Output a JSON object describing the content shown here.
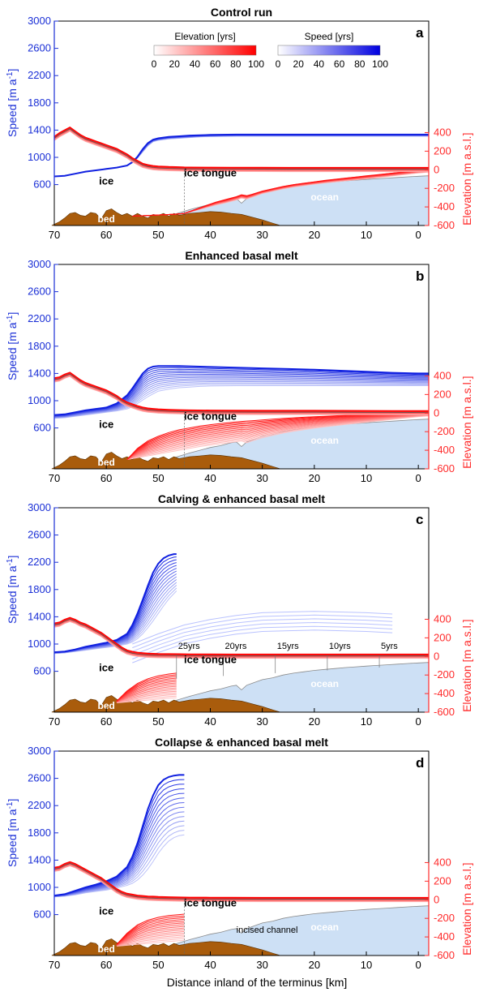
{
  "chart_data": {
    "type": "line",
    "xlabel": "Distance inland of the terminus [km]",
    "ylabel_left": "Speed [m a",
    "ylabel_left_sup": "-1",
    "ylabel_left_end": "]",
    "ylabel_right": "Elevation [m a.s.l.]",
    "xlim": [
      70,
      -2
    ],
    "x_ticks": [
      70,
      60,
      50,
      40,
      30,
      20,
      10,
      0
    ],
    "y_left_lim": [
      0,
      3000
    ],
    "y_left_ticks": [
      600,
      1000,
      1400,
      1800,
      2200,
      2600,
      3000
    ],
    "y_right_lim": [
      -600,
      1600
    ],
    "y_right_ticks": [
      -600,
      -400,
      -200,
      0,
      200,
      400
    ],
    "legend": {
      "elevation": {
        "label": "Elevation [yrs]",
        "ticks": [
          "0",
          "20",
          "40",
          "60",
          "80",
          "100"
        ],
        "color_from": "#ffffff",
        "color_to": "#ff0000"
      },
      "speed": {
        "label": "Speed [yrs]",
        "ticks": [
          "0",
          "20",
          "40",
          "60",
          "80",
          "100"
        ],
        "color_from": "#ffffff",
        "color_to": "#0000e0"
      },
      "placement": "top-center"
    },
    "region_labels": {
      "ice": "ice",
      "bed": "bed",
      "ocean": "ocean",
      "ice_tongue": "ice tongue"
    },
    "colors": {
      "speed": "#1f2ee0",
      "elevation": "#ff2020",
      "bed": "#a95c0c",
      "ocean": "#cde0f5",
      "axis_left": "#1a2fd6",
      "axis_right": "#ff2a2a"
    },
    "bed_profile": {
      "x": [
        70.5,
        69,
        68,
        67,
        66,
        65,
        64,
        63,
        62,
        61,
        60,
        59,
        58,
        57,
        56,
        55,
        54,
        53,
        52,
        51,
        50,
        49,
        48,
        47,
        46,
        45,
        44,
        42,
        40,
        38,
        36,
        34,
        32,
        30,
        28,
        26.5
      ],
      "y": [
        -600,
        -560,
        -520,
        -470,
        -460,
        -490,
        -500,
        -460,
        -470,
        -530,
        -440,
        -420,
        -460,
        -490,
        -470,
        -500,
        -470,
        -500,
        -520,
        -480,
        -490,
        -470,
        -500,
        -470,
        -490,
        -480,
        -470,
        -460,
        -450,
        -455,
        -470,
        -480,
        -510,
        -540,
        -575,
        -600
      ]
    },
    "ocean_profile": {
      "x": [
        47,
        44,
        42,
        40,
        38,
        36,
        35,
        34,
        33,
        32,
        30,
        28,
        26,
        24,
        22,
        20,
        18,
        16,
        14,
        12,
        10,
        8,
        6,
        4,
        2,
        0,
        -2
      ],
      "y": [
        -480,
        -430,
        -400,
        -370,
        -350,
        -320,
        -310,
        -360,
        -310,
        -290,
        -250,
        -230,
        -200,
        -180,
        -165,
        -150,
        -140,
        -130,
        -120,
        -112,
        -104,
        -97,
        -90,
        -83,
        -76,
        -70,
        -65
      ]
    },
    "panels": [
      {
        "id": "a",
        "title": "Control run",
        "annotations": [],
        "speed": {
          "x": [
            70,
            68,
            66,
            64,
            62,
            60,
            58,
            56,
            55,
            54,
            53,
            52,
            51,
            50,
            48,
            46,
            44,
            42,
            40,
            35,
            30,
            25,
            20,
            15,
            10,
            5,
            0,
            -2
          ],
          "start": [
            720,
            730,
            760,
            790,
            810,
            830,
            850,
            880,
            920,
            990,
            1080,
            1170,
            1230,
            1250,
            1270,
            1280,
            1290,
            1300,
            1305,
            1310,
            1310,
            1310,
            1310,
            1310,
            1310,
            1310,
            1310,
            1310
          ],
          "end": [
            720,
            730,
            760,
            790,
            810,
            830,
            850,
            880,
            930,
            1010,
            1120,
            1210,
            1260,
            1280,
            1300,
            1310,
            1320,
            1325,
            1330,
            1335,
            1335,
            1335,
            1335,
            1335,
            1335,
            1335,
            1335,
            1335
          ]
        },
        "elevation": {
          "x": [
            70,
            69,
            68,
            67,
            66,
            65,
            64,
            63,
            62,
            61,
            60,
            59,
            58,
            57,
            56,
            55,
            54,
            53,
            52,
            51,
            50,
            48,
            46,
            45,
            44,
            40,
            36,
            30,
            25,
            20,
            15,
            10,
            5,
            0,
            -2
          ],
          "surface": [
            340,
            380,
            410,
            440,
            400,
            360,
            330,
            310,
            290,
            270,
            250,
            230,
            210,
            180,
            150,
            110,
            80,
            50,
            35,
            25,
            20,
            15,
            12,
            10,
            9,
            8,
            7,
            6,
            5,
            5,
            5,
            5,
            5,
            5,
            5
          ],
          "base_x": [
            55,
            53,
            51,
            49,
            47,
            45,
            43,
            41,
            39,
            37,
            35,
            34,
            33,
            32,
            30,
            28,
            26,
            24,
            22,
            20,
            18,
            16,
            14,
            12,
            10,
            8,
            6,
            4,
            2,
            0,
            -2
          ],
          "base_start": [
            -500,
            -495,
            -490,
            -485,
            -480,
            -470,
            -440,
            -410,
            -380,
            -355,
            -325,
            -305,
            -315,
            -295,
            -255,
            -230,
            -205,
            -185,
            -170,
            -155,
            -142,
            -130,
            -119,
            -108,
            -97,
            -85,
            -73,
            -60,
            -47,
            -34,
            -25
          ],
          "base_end": [
            -500,
            -495,
            -490,
            -485,
            -480,
            -470,
            -430,
            -390,
            -350,
            -320,
            -290,
            -270,
            -280,
            -265,
            -230,
            -205,
            -180,
            -160,
            -145,
            -130,
            -115,
            -102,
            -90,
            -78,
            -66,
            -54,
            -42,
            -30,
            -20,
            -10,
            -5
          ]
        }
      },
      {
        "id": "b",
        "title": "Enhanced basal melt",
        "annotations": [],
        "speed": {
          "x": [
            70,
            68,
            66,
            64,
            62,
            60,
            58,
            56,
            55,
            54,
            53,
            52,
            51,
            50,
            48,
            46,
            44,
            42,
            40,
            35,
            30,
            25,
            20,
            15,
            10,
            5,
            0,
            -2
          ],
          "start": [
            740,
            750,
            770,
            790,
            810,
            830,
            850,
            880,
            910,
            960,
            1010,
            1060,
            1100,
            1140,
            1170,
            1190,
            1200,
            1210,
            1215,
            1220,
            1220,
            1220,
            1220,
            1220,
            1220,
            1220,
            1220,
            1220
          ],
          "end": [
            790,
            800,
            830,
            860,
            880,
            900,
            960,
            1080,
            1180,
            1290,
            1400,
            1470,
            1500,
            1510,
            1510,
            1510,
            1505,
            1500,
            1495,
            1485,
            1475,
            1465,
            1455,
            1440,
            1425,
            1410,
            1400,
            1400
          ]
        },
        "elevation": {
          "x": [
            70,
            69,
            68,
            67,
            66,
            65,
            64,
            63,
            62,
            61,
            60,
            59,
            58,
            57,
            56,
            55,
            54,
            53,
            52,
            51,
            50,
            48,
            46,
            45,
            44,
            40,
            36,
            30,
            25,
            20,
            15,
            10,
            5,
            0,
            -2
          ],
          "surface": [
            360,
            370,
            400,
            420,
            380,
            340,
            310,
            290,
            270,
            250,
            230,
            200,
            170,
            130,
            100,
            80,
            60,
            45,
            35,
            30,
            25,
            20,
            17,
            15,
            14,
            12,
            11,
            10,
            10,
            10,
            9,
            8,
            7,
            6,
            6
          ],
          "base_x": [
            56,
            54,
            52,
            50,
            48,
            46,
            44,
            42,
            40,
            38,
            36,
            34,
            33,
            32,
            30,
            28,
            26,
            24,
            22,
            20,
            18,
            16,
            14,
            12,
            10,
            8,
            6,
            4,
            2,
            0,
            -2
          ],
          "base_start": [
            -500,
            -480,
            -460,
            -440,
            -420,
            -400,
            -380,
            -360,
            -345,
            -330,
            -315,
            -300,
            -320,
            -300,
            -265,
            -240,
            -215,
            -195,
            -178,
            -162,
            -148,
            -135,
            -122,
            -110,
            -98,
            -86,
            -74,
            -62,
            -50,
            -38,
            -30
          ],
          "base_end": [
            -500,
            -380,
            -300,
            -250,
            -210,
            -180,
            -160,
            -140,
            -125,
            -112,
            -100,
            -90,
            -86,
            -82,
            -74,
            -66,
            -58,
            -51,
            -45,
            -39,
            -34,
            -29,
            -24,
            -20,
            -16,
            -12,
            -9,
            -6,
            -4,
            -2,
            -1
          ]
        }
      },
      {
        "id": "c",
        "title": "Calving & enhanced basal melt",
        "annotations": [
          {
            "text": "25yrs",
            "x": 46.5
          },
          {
            "text": "20yrs",
            "x": 37.5
          },
          {
            "text": "15yrs",
            "x": 27.5
          },
          {
            "text": "10yrs",
            "x": 17.5
          },
          {
            "text": "5yrs",
            "x": 7.5
          }
        ],
        "speed": {
          "x": [
            70,
            68,
            66,
            64,
            62,
            60,
            58,
            56,
            55,
            54,
            53,
            52,
            51,
            50,
            49,
            48,
            47,
            46.5
          ],
          "start": [
            860,
            870,
            890,
            910,
            930,
            950,
            970,
            1000,
            1030,
            1080,
            1150,
            1240,
            1340,
            1450,
            1560,
            1660,
            1740,
            1780
          ],
          "end": [
            880,
            890,
            920,
            960,
            990,
            1020,
            1060,
            1150,
            1280,
            1450,
            1650,
            1860,
            2050,
            2180,
            2260,
            2300,
            2320,
            2320
          ]
        },
        "speed_tongue_x": [
          55,
          50,
          45,
          40,
          35,
          30,
          25,
          20,
          15,
          10,
          5
        ],
        "speed_tongue": [
          1000,
          1150,
          1280,
          1360,
          1420,
          1460,
          1470,
          1480,
          1470,
          1460,
          1440
        ],
        "elevation": {
          "x": [
            70,
            69,
            68,
            67,
            66,
            65,
            64,
            63,
            62,
            61,
            60,
            59,
            58,
            57,
            56,
            55,
            54,
            53,
            52,
            51,
            50,
            48,
            46,
            45,
            44,
            40,
            36,
            30,
            25,
            20,
            15,
            10,
            5,
            0,
            -2
          ],
          "surface": [
            340,
            350,
            380,
            400,
            380,
            350,
            330,
            300,
            270,
            240,
            200,
            160,
            120,
            80,
            50,
            35,
            25,
            20,
            15,
            13,
            11,
            10,
            9,
            8,
            7,
            6,
            5,
            5,
            5,
            5,
            5,
            5,
            5,
            5,
            5
          ],
          "base_x": [
            58,
            56,
            54,
            52,
            50,
            48,
            46.5
          ],
          "base_start": [
            -500,
            -490,
            -480,
            -470,
            -460,
            -450,
            -445
          ],
          "base_end": [
            -480,
            -370,
            -290,
            -240,
            -210,
            -190,
            -180
          ]
        }
      },
      {
        "id": "d",
        "title": "Collapse & enhanced basal melt",
        "annotations": [
          {
            "text": "incised channel",
            "x": 30
          }
        ],
        "speed": {
          "x": [
            70,
            68,
            66,
            64,
            62,
            60,
            58,
            56,
            55,
            54,
            53,
            52,
            51,
            50,
            49,
            48,
            47,
            46,
            45
          ],
          "start": [
            860,
            870,
            890,
            920,
            940,
            960,
            990,
            1030,
            1060,
            1110,
            1180,
            1270,
            1380,
            1500,
            1600,
            1680,
            1730,
            1760,
            1770
          ],
          "end": [
            880,
            900,
            950,
            1000,
            1040,
            1090,
            1160,
            1300,
            1450,
            1650,
            1900,
            2150,
            2350,
            2500,
            2580,
            2620,
            2640,
            2650,
            2650
          ]
        },
        "elevation": {
          "x": [
            70,
            69,
            68,
            67,
            66,
            65,
            64,
            63,
            62,
            61,
            60,
            59,
            58,
            57,
            56,
            55,
            54,
            53,
            52,
            51,
            50,
            48,
            46,
            45,
            44,
            40,
            36,
            30,
            25,
            20,
            15,
            10,
            5,
            0,
            -2
          ],
          "surface": [
            330,
            340,
            370,
            390,
            370,
            340,
            310,
            280,
            250,
            220,
            180,
            140,
            100,
            70,
            50,
            40,
            30,
            25,
            20,
            18,
            15,
            12,
            10,
            9,
            8,
            7,
            6,
            5,
            5,
            5,
            5,
            5,
            5,
            5,
            5
          ],
          "base_x": [
            58,
            56,
            54,
            52,
            50,
            48,
            46,
            45
          ],
          "base_start": [
            -500,
            -490,
            -480,
            -470,
            -460,
            -450,
            -440,
            -435
          ],
          "base_end": [
            -480,
            -360,
            -270,
            -220,
            -190,
            -170,
            -160,
            -155
          ]
        }
      }
    ]
  }
}
